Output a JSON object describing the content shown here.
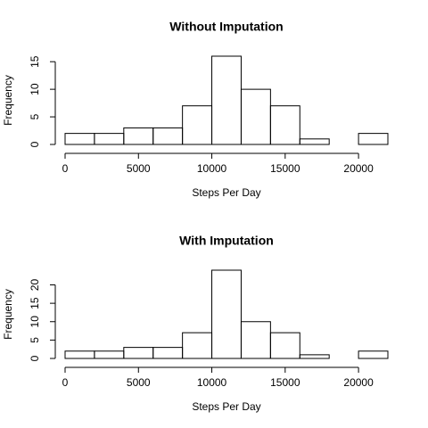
{
  "chart_data": [
    {
      "type": "histogram",
      "title": "Without Imputation",
      "xlabel": "Steps Per Day",
      "ylabel": "Frequency",
      "bins": [
        0,
        2000,
        4000,
        6000,
        8000,
        10000,
        12000,
        14000,
        16000,
        18000,
        20000,
        22000
      ],
      "values": [
        2,
        2,
        3,
        3,
        7,
        16,
        10,
        7,
        1,
        0,
        2
      ],
      "xlim": [
        0,
        22000
      ],
      "xticks": [
        0,
        5000,
        10000,
        15000,
        20000
      ],
      "ylim": [
        0,
        16
      ],
      "yticks": [
        0,
        5,
        10,
        15
      ]
    },
    {
      "type": "histogram",
      "title": "With Imputation",
      "xlabel": "Steps Per Day",
      "ylabel": "Frequency",
      "bins": [
        0,
        2000,
        4000,
        6000,
        8000,
        10000,
        12000,
        14000,
        16000,
        18000,
        20000,
        22000
      ],
      "values": [
        2,
        2,
        3,
        3,
        7,
        24,
        10,
        7,
        1,
        0,
        2
      ],
      "xlim": [
        0,
        22000
      ],
      "xticks": [
        0,
        5000,
        10000,
        15000,
        20000
      ],
      "ylim": [
        0,
        24
      ],
      "yticks": [
        0,
        5,
        10,
        15,
        20
      ]
    }
  ]
}
